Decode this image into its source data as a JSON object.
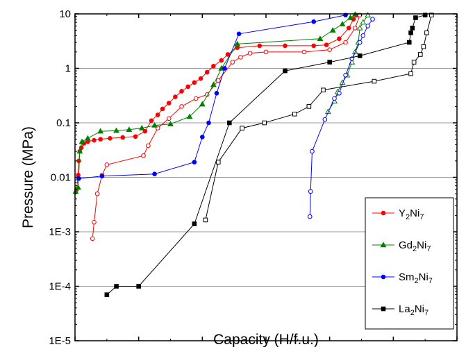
{
  "chart_data": {
    "type": "scatter",
    "xlabel": "Capacity (H/f.u.)",
    "ylabel": "Pressure (MPa)",
    "x_scale": "linear",
    "y_scale": "log",
    "xlim": [
      0,
      12
    ],
    "ylim": [
      1e-05,
      10
    ],
    "x_ticks": [
      0,
      2,
      4,
      6,
      8,
      10,
      12
    ],
    "y_ticks": [
      {
        "value": 1e-05,
        "label": "1E-5"
      },
      {
        "value": 0.0001,
        "label": "1E-4"
      },
      {
        "value": 0.001,
        "label": "1E-3"
      },
      {
        "value": 0.01,
        "label": "0.01"
      },
      {
        "value": 0.1,
        "label": "0.1"
      },
      {
        "value": 1,
        "label": "1"
      },
      {
        "value": 10,
        "label": "10"
      }
    ],
    "grid": "horizontal",
    "legend_position": "bottom-right",
    "series": [
      {
        "name_base": "Y",
        "name_sub1": "2",
        "name_mid": "Ni",
        "name_sub2": "7",
        "color": "#ff0000",
        "marker": "circle",
        "absorption": [
          [
            0.05,
            0.006
          ],
          [
            0.1,
            0.011
          ],
          [
            0.12,
            0.02
          ],
          [
            0.15,
            0.03
          ],
          [
            0.2,
            0.035
          ],
          [
            0.28,
            0.042
          ],
          [
            0.4,
            0.045
          ],
          [
            0.6,
            0.048
          ],
          [
            0.8,
            0.05
          ],
          [
            1.1,
            0.052
          ],
          [
            1.5,
            0.054
          ],
          [
            1.9,
            0.056
          ],
          [
            2.2,
            0.07
          ],
          [
            2.4,
            0.11
          ],
          [
            2.6,
            0.14
          ],
          [
            2.75,
            0.18
          ],
          [
            2.95,
            0.23
          ],
          [
            3.15,
            0.3
          ],
          [
            3.35,
            0.38
          ],
          [
            3.55,
            0.46
          ],
          [
            3.75,
            0.55
          ],
          [
            3.95,
            0.65
          ],
          [
            4.15,
            0.85
          ],
          [
            4.35,
            1.1
          ],
          [
            4.6,
            1.4
          ],
          [
            4.8,
            1.8
          ],
          [
            5.1,
            2.4
          ],
          [
            5.8,
            2.6
          ],
          [
            6.6,
            2.6
          ],
          [
            7.5,
            2.6
          ],
          [
            7.9,
            2.7
          ],
          [
            8.3,
            3.5
          ],
          [
            8.6,
            5.5
          ],
          [
            8.75,
            8.0
          ],
          [
            8.85,
            9.5
          ]
        ],
        "desorption": [
          [
            8.95,
            9.5
          ],
          [
            8.8,
            5.5
          ],
          [
            8.5,
            3.0
          ],
          [
            8.0,
            2.2
          ],
          [
            7.2,
            2.0
          ],
          [
            6.0,
            2.0
          ],
          [
            5.5,
            1.9
          ],
          [
            5.2,
            1.6
          ],
          [
            4.95,
            1.3
          ],
          [
            4.5,
            0.6
          ],
          [
            4.15,
            0.33
          ],
          [
            3.8,
            0.28
          ],
          [
            3.35,
            0.2
          ],
          [
            2.95,
            0.12
          ],
          [
            2.6,
            0.08
          ],
          [
            2.3,
            0.038
          ],
          [
            2.15,
            0.025
          ],
          [
            1.0,
            0.017
          ],
          [
            0.85,
            0.011
          ],
          [
            0.7,
            0.005
          ],
          [
            0.6,
            0.0015
          ],
          [
            0.55,
            0.00075
          ]
        ]
      },
      {
        "name_base": "Gd",
        "name_sub1": "2",
        "name_mid": "Ni",
        "name_sub2": "7",
        "color": "#008000",
        "marker": "triangle",
        "absorption": [
          [
            0.02,
            0.0055
          ],
          [
            0.1,
            0.0065
          ],
          [
            0.15,
            0.03
          ],
          [
            0.22,
            0.045
          ],
          [
            0.4,
            0.052
          ],
          [
            0.8,
            0.07
          ],
          [
            1.3,
            0.072
          ],
          [
            1.7,
            0.075
          ],
          [
            2.1,
            0.08
          ],
          [
            2.5,
            0.09
          ],
          [
            3.0,
            0.095
          ],
          [
            3.6,
            0.13
          ],
          [
            4.0,
            0.22
          ],
          [
            4.35,
            0.5
          ],
          [
            4.6,
            1.0
          ],
          [
            5.1,
            2.8
          ],
          [
            7.7,
            3.5
          ],
          [
            8.1,
            5.0
          ],
          [
            8.4,
            6.5
          ],
          [
            8.65,
            8.5
          ],
          [
            8.8,
            9.8
          ]
        ],
        "desorption": [
          [
            9.2,
            9.5
          ],
          [
            9.05,
            7.0
          ],
          [
            8.95,
            5.5
          ],
          [
            8.9,
            3.0
          ],
          [
            8.8,
            2.0
          ],
          [
            8.7,
            1.3
          ],
          [
            8.55,
            0.75
          ],
          [
            8.4,
            0.55
          ],
          [
            8.25,
            0.37
          ],
          [
            8.15,
            0.25
          ],
          [
            7.95,
            0.16
          ]
        ]
      },
      {
        "name_base": "Sm",
        "name_sub1": "2",
        "name_mid": "Ni",
        "name_sub2": "7",
        "color": "#0000ff",
        "marker": "circle",
        "absorption": [
          [
            0.12,
            0.0095
          ],
          [
            0.85,
            0.0105
          ],
          [
            2.5,
            0.0115
          ],
          [
            3.75,
            0.019
          ],
          [
            4.0,
            0.055
          ],
          [
            4.2,
            0.1
          ],
          [
            4.45,
            0.35
          ],
          [
            4.7,
            1.0
          ],
          [
            5.15,
            4.3
          ],
          [
            7.5,
            7.2
          ],
          [
            8.5,
            9.5
          ]
        ],
        "desorption": [
          [
            9.35,
            8.0
          ],
          [
            9.2,
            6.0
          ],
          [
            9.05,
            4.0
          ],
          [
            8.95,
            3.0
          ],
          [
            8.7,
            1.5
          ],
          [
            8.5,
            0.75
          ],
          [
            8.3,
            0.35
          ],
          [
            8.15,
            0.28
          ],
          [
            7.85,
            0.115
          ],
          [
            7.45,
            0.03
          ],
          [
            7.4,
            0.0055
          ],
          [
            7.38,
            0.0019
          ]
        ]
      },
      {
        "name_base": "La",
        "name_sub1": "2",
        "name_mid": "Ni",
        "name_sub2": "7",
        "color": "#000000",
        "marker": "square",
        "absorption": [
          [
            1.0,
            7e-05
          ],
          [
            1.3,
            0.0001
          ],
          [
            2.0,
            0.0001
          ],
          [
            3.75,
            0.0014
          ],
          [
            4.85,
            0.1
          ],
          [
            6.6,
            0.9
          ],
          [
            8.0,
            1.3
          ],
          [
            8.95,
            1.7
          ],
          [
            10.5,
            3.0
          ],
          [
            10.55,
            4.5
          ],
          [
            10.6,
            5.5
          ],
          [
            10.7,
            8.5
          ],
          [
            11.0,
            9.5
          ]
        ],
        "desorption": [
          [
            11.2,
            9.5
          ],
          [
            11.05,
            4.5
          ],
          [
            10.95,
            2.5
          ],
          [
            10.85,
            1.8
          ],
          [
            10.65,
            1.3
          ],
          [
            10.55,
            0.8
          ],
          [
            9.4,
            0.58
          ],
          [
            7.8,
            0.4
          ],
          [
            7.35,
            0.2
          ],
          [
            6.9,
            0.145
          ],
          [
            5.95,
            0.1
          ],
          [
            5.25,
            0.08
          ],
          [
            4.5,
            0.019
          ],
          [
            4.1,
            0.00165
          ]
        ]
      }
    ]
  }
}
